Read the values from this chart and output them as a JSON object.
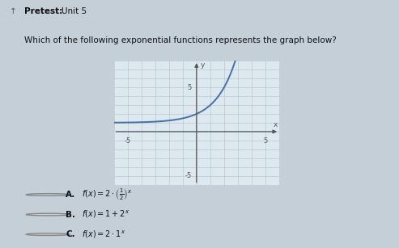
{
  "title_arrow": "↑",
  "title_bold": "Pretest:",
  "title_normal": " Unit 5",
  "question": "Which of the following exponential functions represents the graph below?",
  "background_color": "#c5cfd8",
  "title_bar_color": "#d0d5d9",
  "graph_bg_color": "#dde8ef",
  "options_bg_color": "#d8e2ea",
  "graph_xlim": [
    -6,
    6
  ],
  "graph_ylim": [
    -6,
    8
  ],
  "curve_color": "#4472a8",
  "curve_linewidth": 1.4,
  "grid_color": "#b0c4cc",
  "axis_color": "#555555",
  "text_color": "#111111",
  "title_fontsize": 7.5,
  "question_fontsize": 7.5,
  "option_fontsize": 7.0,
  "option_label_fontsize": 7.5,
  "tick_label_fontsize": 6.0,
  "axis_label_fontsize": 6.5,
  "circle_color": "#888888",
  "separator_color": "#b0baba"
}
